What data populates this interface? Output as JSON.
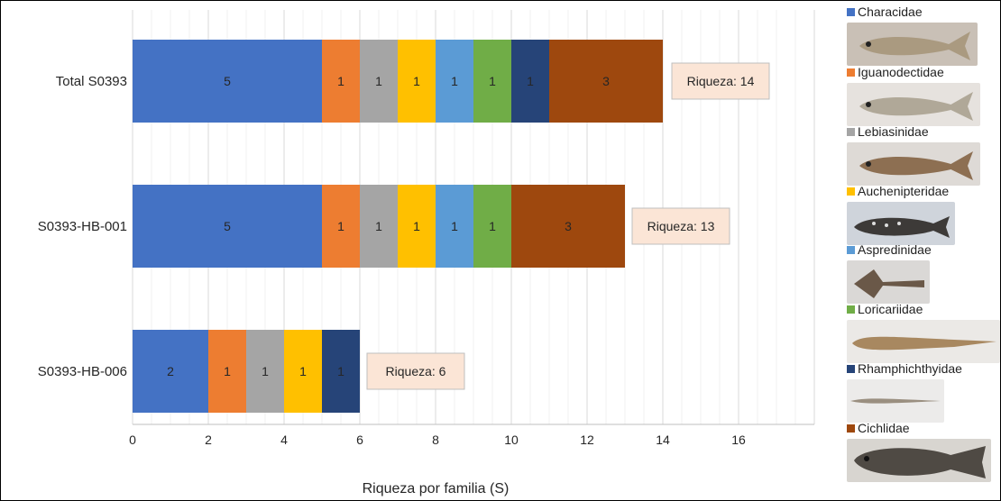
{
  "chart_data": {
    "type": "bar",
    "orientation": "horizontal",
    "stacked": true,
    "categories": [
      "Total S0393",
      "S0393-HB-001",
      "S0393-HB-006"
    ],
    "series": [
      {
        "name": "Characidae",
        "color": "#4472C4",
        "values": [
          5,
          5,
          2
        ]
      },
      {
        "name": "Iguanodectidae",
        "color": "#ED7D31",
        "values": [
          1,
          1,
          1
        ]
      },
      {
        "name": "Lebiasinidae",
        "color": "#A5A5A5",
        "values": [
          1,
          1,
          1
        ]
      },
      {
        "name": "Auchenipteridae",
        "color": "#FFC000",
        "values": [
          1,
          1,
          1
        ]
      },
      {
        "name": "Aspredinidae",
        "color": "#5B9BD5",
        "values": [
          1,
          1,
          0
        ]
      },
      {
        "name": "Loricariidae",
        "color": "#70AD47",
        "values": [
          1,
          1,
          0
        ]
      },
      {
        "name": "Rhamphichthyidae",
        "color": "#264478",
        "values": [
          1,
          0,
          1
        ]
      },
      {
        "name": "Cichlidae",
        "color": "#9E480E",
        "values": [
          3,
          3,
          0
        ]
      }
    ],
    "totals_labels": [
      "Riqueza: 14",
      "Riqueza: 13",
      "Riqueza: 6"
    ],
    "xlabel": "Riqueza por familia (S)",
    "ylabel": "",
    "xlim": [
      0,
      18
    ],
    "xticks": [
      0,
      2,
      4,
      6,
      8,
      10,
      12,
      14,
      16
    ],
    "grid": "vertical",
    "legend_position": "right"
  },
  "legend": {
    "items": [
      {
        "label": "Characidae",
        "icon": "fish-photo"
      },
      {
        "label": "Iguanodectidae",
        "icon": "fish-photo"
      },
      {
        "label": "Lebiasinidae",
        "icon": "fish-photo"
      },
      {
        "label": "Auchenipteridae",
        "icon": "catfish-photo"
      },
      {
        "label": "Aspredinidae",
        "icon": "banjo-catfish-photo"
      },
      {
        "label": "Loricariidae",
        "icon": "armored-catfish-photo"
      },
      {
        "label": "Rhamphichthyidae",
        "icon": "knifefish-photo"
      },
      {
        "label": "Cichlidae",
        "icon": "cichlid-photo"
      }
    ]
  },
  "colors": {
    "annotation_fill": "#FBE5D6",
    "annotation_border": "#BFBFBF",
    "grid": "#D9D9D9",
    "bar_label_text": "#262626"
  }
}
